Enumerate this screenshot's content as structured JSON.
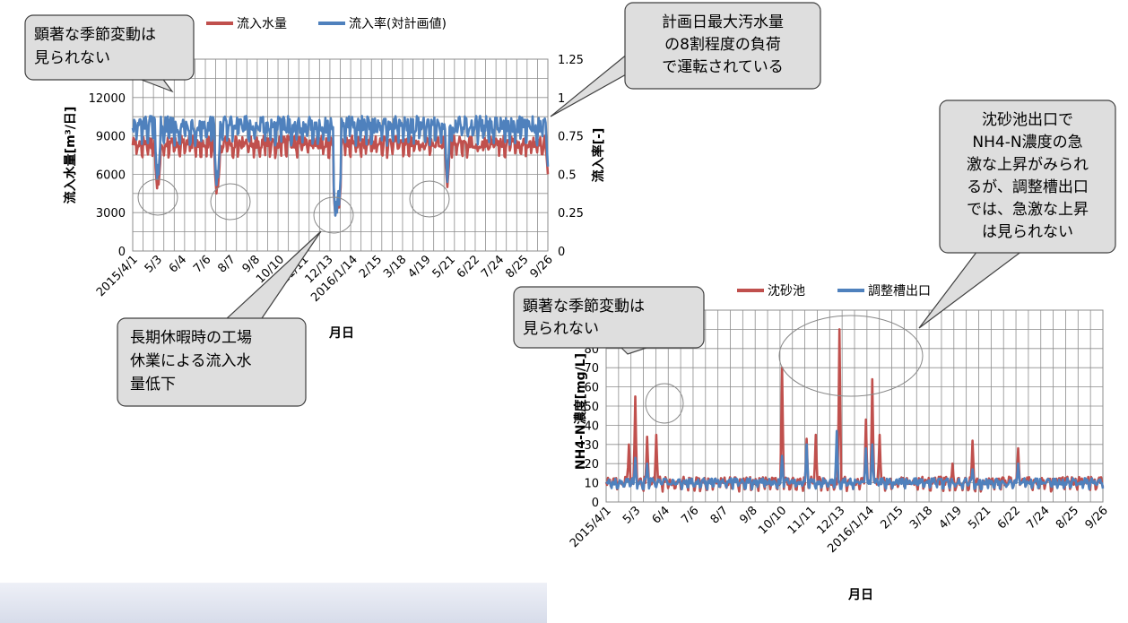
{
  "colors": {
    "red": "#c0504d",
    "blue": "#4f81bd",
    "grid": "#8c8c8c",
    "callout_fill": "#dedede",
    "callout_stroke": "#404040"
  },
  "chart_data": [
    {
      "type": "line",
      "title": "",
      "xlabel": "月日",
      "ylabel": "流入水量[m³/日]",
      "y2label": "流入率[-]",
      "ylim": [
        0,
        15000
      ],
      "y2lim": [
        0,
        1.25
      ],
      "yticks": [
        "0",
        "3000",
        "6000",
        "9000",
        "12000"
      ],
      "y2ticks": [
        "0",
        "0.25",
        "0.5",
        "0.75",
        "1",
        "1.25"
      ],
      "xticks": [
        "2015/4/1",
        "5/3",
        "6/4",
        "7/6",
        "8/7",
        "9/8",
        "10/10",
        "11/11",
        "12/13",
        "2016/1/14",
        "2/15",
        "3/18",
        "4/19",
        "5/21",
        "6/22",
        "7/24",
        "8/25",
        "9/26"
      ],
      "legend_position": "top",
      "grid": true,
      "series": [
        {
          "name": "流入水量",
          "color": "#c0504d",
          "axis": "left",
          "base": 8300,
          "amplitude": 900,
          "dips": [
            [
              32,
              4900
            ],
            [
              34,
              5200
            ],
            [
              110,
              4500
            ],
            [
              112,
              5000
            ],
            [
              266,
              2800
            ],
            [
              268,
              3000
            ],
            [
              271,
              3400
            ],
            [
              413,
              5000
            ],
            [
              545,
              6000
            ]
          ]
        },
        {
          "name": "流入率(対計画値)",
          "color": "#4f81bd",
          "axis": "right",
          "base": 0.8,
          "amplitude": 0.1,
          "dips": [
            [
              32,
              0.47
            ],
            [
              34,
              0.5
            ],
            [
              110,
              0.43
            ],
            [
              112,
              0.48
            ],
            [
              266,
              0.23
            ],
            [
              268,
              0.25
            ],
            [
              271,
              0.3
            ],
            [
              413,
              0.45
            ],
            [
              545,
              0.55
            ]
          ]
        }
      ]
    },
    {
      "type": "line",
      "title": "",
      "xlabel": "月日",
      "ylabel": "NH4-N濃度[mg/L]",
      "ylim": [
        0,
        100
      ],
      "yticks": [
        "0",
        "10",
        "20",
        "30",
        "40",
        "50",
        "60",
        "70",
        "80"
      ],
      "xticks": [
        "2015/4/1",
        "5/3",
        "6/4",
        "7/6",
        "8/7",
        "9/8",
        "10/10",
        "11/11",
        "12/13",
        "2016/1/14",
        "2/15",
        "3/18",
        "4/19",
        "5/21",
        "6/22",
        "7/24",
        "8/25",
        "9/26"
      ],
      "legend_position": "top",
      "grid": true,
      "series": [
        {
          "name": "沈砂池",
          "color": "#c0504d",
          "base": 10,
          "amplitude": 4,
          "peaks": [
            [
              32,
              55
            ],
            [
              25,
              30
            ],
            [
              45,
              34
            ],
            [
              55,
              35
            ],
            [
              193,
              70
            ],
            [
              220,
              33
            ],
            [
              230,
              35
            ],
            [
              256,
              90
            ],
            [
              285,
              43
            ],
            [
              292,
              64
            ],
            [
              300,
              35
            ],
            [
              380,
              20
            ],
            [
              402,
              32
            ],
            [
              452,
              28
            ]
          ]
        },
        {
          "name": "調整槽出口",
          "color": "#4f81bd",
          "base": 10,
          "amplitude": 3,
          "peaks": [
            [
              32,
              23
            ],
            [
              45,
              20
            ],
            [
              193,
              24
            ],
            [
              220,
              30
            ],
            [
              253,
              37
            ],
            [
              285,
              28
            ],
            [
              292,
              30
            ],
            [
              402,
              17
            ],
            [
              452,
              20
            ]
          ]
        }
      ]
    }
  ],
  "callouts": [
    {
      "name": "callout-seasonal-inflow",
      "lines": [
        "顕著な季節変動は",
        "見られない"
      ]
    },
    {
      "name": "callout-load-ratio",
      "lines": [
        "計画日最大汚水量",
        "の8割程度の負荷",
        "で運転されている"
      ]
    },
    {
      "name": "callout-holiday",
      "lines": [
        "長期休暇時の工場",
        "休業による流入水",
        "量低下"
      ]
    },
    {
      "name": "callout-nh4-spike",
      "lines": [
        "沈砂池出口で",
        "NH4-N濃度の急",
        "激な上昇がみられ",
        "るが、調整槽出口",
        "では、急激な上昇",
        "は見られない"
      ]
    },
    {
      "name": "callout-seasonal-nh4",
      "lines": [
        "顕著な季節変動は",
        "見られない"
      ]
    }
  ]
}
